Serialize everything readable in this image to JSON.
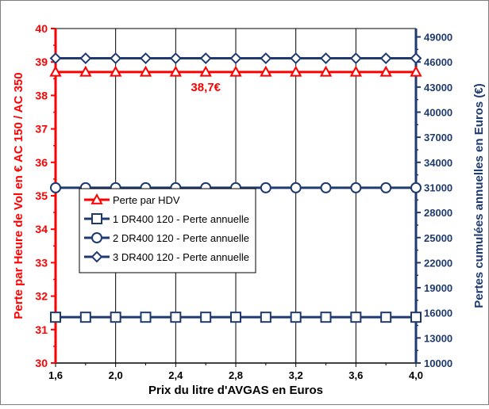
{
  "chart_data": {
    "type": "line",
    "title": "",
    "xlabel": "Prix du litre d'AVGAS en Euros",
    "ylabel_left": "Perte par Heure de Vol en € AC 150 / AC 350",
    "ylabel_right": "Pertes cumulées annuelles en Euros (€)",
    "x_ticks": [
      "1,6",
      "2,0",
      "2,4",
      "2,8",
      "3,2",
      "3,6",
      "4,0"
    ],
    "x_tick_values": [
      1.6,
      2.0,
      2.4,
      2.8,
      3.2,
      3.6,
      4.0
    ],
    "xlim": [
      1.6,
      4.0
    ],
    "ylim_left": [
      30,
      40
    ],
    "y_ticks_left": [
      "30",
      "31",
      "32",
      "33",
      "34",
      "35",
      "36",
      "37",
      "38",
      "39",
      "40"
    ],
    "y_tick_values_left": [
      30,
      31,
      32,
      33,
      34,
      35,
      36,
      37,
      38,
      39,
      40
    ],
    "ylim_right": [
      10000,
      50000
    ],
    "y_ticks_right": [
      "10000",
      "13000",
      "16000",
      "19000",
      "22000",
      "25000",
      "28000",
      "31000",
      "34000",
      "37000",
      "40000",
      "43000",
      "46000",
      "49000"
    ],
    "y_tick_values_right": [
      10000,
      13000,
      16000,
      19000,
      22000,
      25000,
      28000,
      31000,
      34000,
      37000,
      40000,
      43000,
      46000,
      49000
    ],
    "x": [
      1.6,
      1.8,
      2.0,
      2.2,
      2.4,
      2.6,
      2.8,
      3.0,
      3.2,
      3.4,
      3.6,
      3.8,
      4.0
    ],
    "series": [
      {
        "name": "Perte par HDV",
        "axis": "left",
        "marker": "triangle",
        "color": "#ff0000",
        "values": [
          38.7,
          38.7,
          38.7,
          38.7,
          38.7,
          38.7,
          38.7,
          38.7,
          38.7,
          38.7,
          38.7,
          38.7,
          38.7
        ]
      },
      {
        "name": "1 DR400 120 - Perte annuelle",
        "axis": "right",
        "marker": "square",
        "color": "#1f3a6e",
        "values": [
          15480,
          15480,
          15480,
          15480,
          15480,
          15480,
          15480,
          15480,
          15480,
          15480,
          15480,
          15480,
          15480
        ]
      },
      {
        "name": "2 DR400 120 - Perte annuelle",
        "axis": "right",
        "marker": "circle",
        "color": "#1f3a6e",
        "values": [
          30960,
          30960,
          30960,
          30960,
          30960,
          30960,
          30960,
          30960,
          30960,
          30960,
          30960,
          30960,
          30960
        ]
      },
      {
        "name": "3 DR400 120 - Perte annuelle",
        "axis": "right",
        "marker": "diamond",
        "color": "#1f3a6e",
        "values": [
          46440,
          46440,
          46440,
          46440,
          46440,
          46440,
          46440,
          46440,
          46440,
          46440,
          46440,
          46440,
          46440
        ]
      }
    ],
    "annotations": [
      {
        "text": "38,7€",
        "x": 2.6,
        "y": 38.7,
        "axis": "left",
        "color": "#ff0000"
      }
    ],
    "grid": "vertical",
    "legend_position": "center-left",
    "colors": {
      "left_axis": "#ff0000",
      "right_axis": "#1f3a6e",
      "grid": "#000000"
    }
  }
}
